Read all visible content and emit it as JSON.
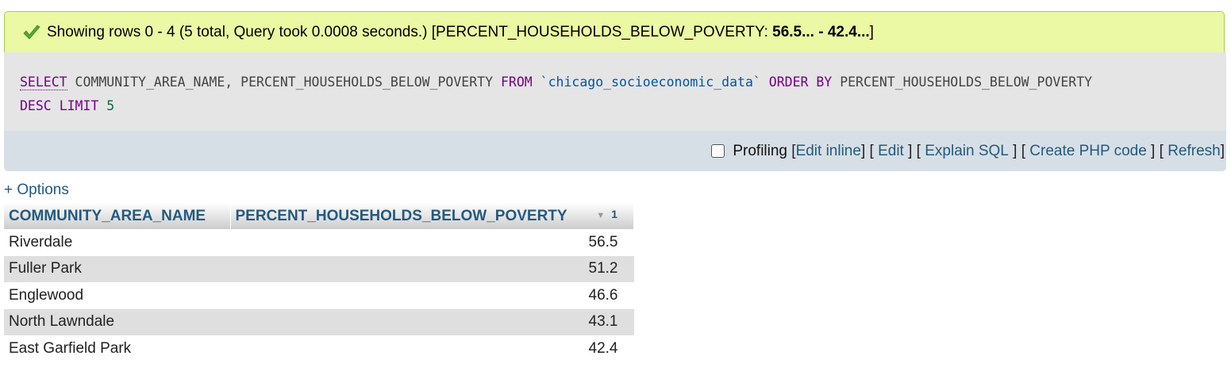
{
  "status": {
    "prefix": "Showing rows 0 - 4 (5 total, Query took 0.0008 seconds.) [PERCENT_HOUSEHOLDS_BELOW_POVERTY: ",
    "range": "56.5... - 42.4...",
    "suffix": "]",
    "icon": "check-icon",
    "accent": "#a2d246"
  },
  "sql": {
    "select_kw": "SELECT",
    "columns": "COMMUNITY_AREA_NAME, PERCENT_HOUSEHOLDS_BELOW_POVERTY",
    "from_kw": "FROM",
    "table": "`chicago_socioeconomic_data`",
    "order_kw": "ORDER BY",
    "order_col": "PERCENT_HOUSEHOLDS_BELOW_POVERTY",
    "desc_kw": "DESC",
    "limit_kw": "LIMIT",
    "limit_val": "5"
  },
  "tools": {
    "profiling_label": "Profiling",
    "edit_inline": "Edit inline",
    "edit": "Edit",
    "explain_sql": "Explain SQL",
    "create_php": "Create PHP code",
    "refresh": "Refresh"
  },
  "options_label": "+ Options",
  "table": {
    "headers": [
      "COMMUNITY_AREA_NAME",
      "PERCENT_HOUSEHOLDS_BELOW_POVERTY"
    ],
    "sort_order": "1",
    "rows": [
      [
        "Riverdale",
        "56.5"
      ],
      [
        "Fuller Park",
        "51.2"
      ],
      [
        "Englewood",
        "46.6"
      ],
      [
        "North Lawndale",
        "43.1"
      ],
      [
        "East Garfield Park",
        "42.4"
      ]
    ]
  }
}
